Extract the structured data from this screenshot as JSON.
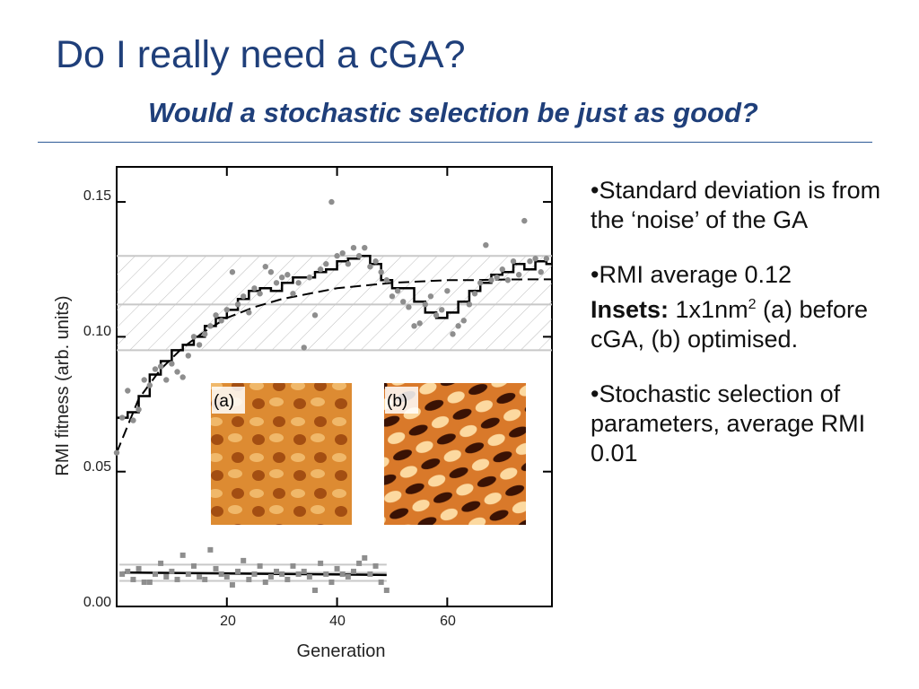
{
  "slide": {
    "title": "Do I really need a cGA?",
    "subtitle": "Would a stochastic selection be just as good?",
    "title_color": "#1f3f7a"
  },
  "bullets": {
    "b1": "•Standard deviation is from the ‘noise’ of the GA",
    "b2_pre": "•RMI average 0.12",
    "b2_bold": "Insets:",
    "b2_mid": " 1x1nm",
    "b2_sup": "2",
    "b2_post": " (a) before cGA, (b) optimised.",
    "b3": "•Stochastic selection of parameters, average RMI 0.01"
  },
  "chart_data": {
    "type": "scatter",
    "xlabel": "Generation",
    "ylabel": "RMI fitness (arb. units)",
    "xlim": [
      0,
      79
    ],
    "ylim": [
      0,
      0.163
    ],
    "x_ticks": [
      "20",
      "40",
      "60"
    ],
    "y_ticks": [
      "0.00",
      "0.05",
      "0.10",
      "0.15"
    ],
    "bands": [
      {
        "name": "cGA",
        "center": 0.112,
        "low": 0.095,
        "high": 0.13
      },
      {
        "name": "stochastic",
        "center": 0.0125,
        "low": 0.0095,
        "high": 0.0155
      }
    ],
    "series": [
      {
        "points": [
          [
            0,
            0.057
          ],
          [
            1,
            0.07
          ],
          [
            2,
            0.08
          ],
          [
            3,
            0.069
          ],
          [
            4,
            0.073
          ],
          [
            5,
            0.084
          ],
          [
            6,
            0.082
          ],
          [
            7,
            0.088
          ],
          [
            8,
            0.089
          ],
          [
            9,
            0.084
          ],
          [
            10,
            0.09
          ],
          [
            11,
            0.087
          ],
          [
            12,
            0.085
          ],
          [
            13,
            0.093
          ],
          [
            14,
            0.1
          ],
          [
            15,
            0.097
          ],
          [
            16,
            0.101
          ],
          [
            17,
            0.104
          ],
          [
            18,
            0.108
          ],
          [
            19,
            0.106
          ],
          [
            20,
            0.11
          ],
          [
            21,
            0.124
          ],
          [
            22,
            0.112
          ],
          [
            23,
            0.115
          ],
          [
            24,
            0.109
          ],
          [
            25,
            0.118
          ],
          [
            26,
            0.116
          ],
          [
            27,
            0.126
          ],
          [
            28,
            0.124
          ],
          [
            29,
            0.12
          ],
          [
            30,
            0.122
          ],
          [
            31,
            0.123
          ],
          [
            32,
            0.116
          ],
          [
            33,
            0.12
          ],
          [
            34,
            0.096
          ],
          [
            35,
            0.122
          ],
          [
            36,
            0.108
          ],
          [
            37,
            0.125
          ],
          [
            38,
            0.127
          ],
          [
            39,
            0.15
          ],
          [
            40,
            0.13
          ],
          [
            41,
            0.131
          ],
          [
            42,
            0.127
          ],
          [
            43,
            0.133
          ],
          [
            44,
            0.13
          ],
          [
            45,
            0.133
          ],
          [
            46,
            0.126
          ],
          [
            47,
            0.128
          ],
          [
            48,
            0.124
          ],
          [
            49,
            0.121
          ],
          [
            50,
            0.115
          ],
          [
            51,
            0.117
          ],
          [
            52,
            0.113
          ],
          [
            53,
            0.111
          ],
          [
            54,
            0.104
          ],
          [
            55,
            0.105
          ],
          [
            56,
            0.112
          ],
          [
            57,
            0.115
          ],
          [
            58,
            0.108
          ],
          [
            59,
            0.11
          ],
          [
            60,
            0.117
          ],
          [
            61,
            0.101
          ],
          [
            62,
            0.104
          ],
          [
            63,
            0.106
          ],
          [
            64,
            0.112
          ],
          [
            65,
            0.116
          ],
          [
            66,
            0.12
          ],
          [
            67,
            0.134
          ],
          [
            68,
            0.121
          ],
          [
            69,
            0.122
          ],
          [
            70,
            0.125
          ],
          [
            71,
            0.121
          ],
          [
            72,
            0.128
          ],
          [
            73,
            0.123
          ],
          [
            74,
            0.143
          ],
          [
            75,
            0.128
          ],
          [
            76,
            0.129
          ],
          [
            77,
            0.124
          ],
          [
            78,
            0.129
          ]
        ]
      },
      {
        "points": [
          [
            1,
            0.012
          ],
          [
            2,
            0.013
          ],
          [
            3,
            0.01
          ],
          [
            4,
            0.014
          ],
          [
            5,
            0.009
          ],
          [
            6,
            0.009
          ],
          [
            7,
            0.012
          ],
          [
            8,
            0.016
          ],
          [
            9,
            0.011
          ],
          [
            10,
            0.013
          ],
          [
            11,
            0.01
          ],
          [
            12,
            0.019
          ],
          [
            13,
            0.012
          ],
          [
            14,
            0.015
          ],
          [
            15,
            0.011
          ],
          [
            16,
            0.01
          ],
          [
            17,
            0.021
          ],
          [
            18,
            0.014
          ],
          [
            19,
            0.012
          ],
          [
            20,
            0.011
          ],
          [
            21,
            0.008
          ],
          [
            22,
            0.013
          ],
          [
            23,
            0.017
          ],
          [
            24,
            0.01
          ],
          [
            25,
            0.012
          ],
          [
            26,
            0.015
          ],
          [
            27,
            0.009
          ],
          [
            28,
            0.011
          ],
          [
            29,
            0.013
          ],
          [
            30,
            0.012
          ],
          [
            31,
            0.01
          ],
          [
            32,
            0.015
          ],
          [
            33,
            0.012
          ],
          [
            34,
            0.013
          ],
          [
            35,
            0.011
          ],
          [
            36,
            0.006
          ],
          [
            37,
            0.016
          ],
          [
            38,
            0.012
          ],
          [
            39,
            0.009
          ],
          [
            40,
            0.014
          ],
          [
            41,
            0.012
          ],
          [
            42,
            0.011
          ],
          [
            43,
            0.013
          ],
          [
            44,
            0.016
          ],
          [
            45,
            0.018
          ],
          [
            46,
            0.012
          ],
          [
            47,
            0.015
          ],
          [
            48,
            0.009
          ],
          [
            49,
            0.006
          ]
        ]
      },
      {
        "points": [
          [
            0,
            0.07
          ],
          [
            2,
            0.072
          ],
          [
            4,
            0.078
          ],
          [
            6,
            0.086
          ],
          [
            8,
            0.091
          ],
          [
            10,
            0.095
          ],
          [
            12,
            0.097
          ],
          [
            14,
            0.1
          ],
          [
            16,
            0.104
          ],
          [
            18,
            0.107
          ],
          [
            20,
            0.11
          ],
          [
            22,
            0.114
          ],
          [
            24,
            0.117
          ],
          [
            26,
            0.118
          ],
          [
            28,
            0.117
          ],
          [
            30,
            0.12
          ],
          [
            32,
            0.122
          ],
          [
            34,
            0.122
          ],
          [
            36,
            0.124
          ],
          [
            38,
            0.125
          ],
          [
            40,
            0.128
          ],
          [
            42,
            0.129
          ],
          [
            44,
            0.13
          ],
          [
            46,
            0.127
          ],
          [
            48,
            0.121
          ],
          [
            50,
            0.118
          ],
          [
            52,
            0.118
          ],
          [
            54,
            0.113
          ],
          [
            56,
            0.109
          ],
          [
            58,
            0.107
          ],
          [
            60,
            0.109
          ],
          [
            62,
            0.113
          ],
          [
            64,
            0.117
          ],
          [
            66,
            0.12
          ],
          [
            68,
            0.123
          ],
          [
            70,
            0.124
          ],
          [
            72,
            0.127
          ],
          [
            74,
            0.125
          ],
          [
            76,
            0.128
          ],
          [
            78,
            0.127
          ]
        ]
      },
      {
        "points": [
          [
            0,
            0.057
          ],
          [
            4,
            0.077
          ],
          [
            8,
            0.088
          ],
          [
            12,
            0.096
          ],
          [
            16,
            0.102
          ],
          [
            20,
            0.107
          ],
          [
            25,
            0.111
          ],
          [
            30,
            0.114
          ],
          [
            35,
            0.116
          ],
          [
            40,
            0.118
          ],
          [
            45,
            0.119
          ],
          [
            50,
            0.12
          ],
          [
            55,
            0.1205
          ],
          [
            60,
            0.121
          ],
          [
            65,
            0.121
          ],
          [
            70,
            0.1212
          ],
          [
            75,
            0.1213
          ],
          [
            79,
            0.1213
          ]
        ]
      },
      {
        "points": [
          [
            1,
            0.0126
          ],
          [
            49,
            0.0117
          ]
        ]
      }
    ],
    "insets": [
      {
        "label": "(a)"
      },
      {
        "label": "(b)"
      }
    ]
  }
}
